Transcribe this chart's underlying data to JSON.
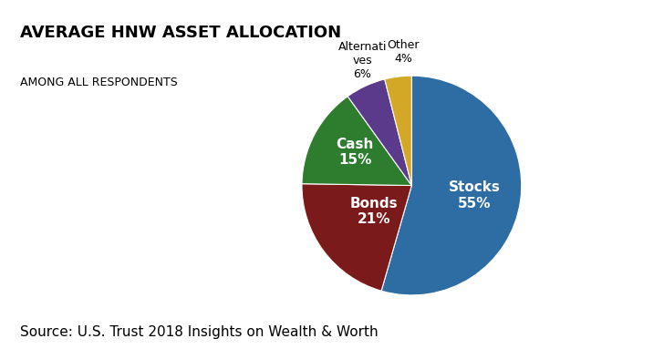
{
  "title": "AVERAGE HNW ASSET ALLOCATION",
  "subtitle": "AMONG ALL RESPONDENTS",
  "source": "Source: U.S. Trust 2018 Insights on Wealth & Worth",
  "slices": [
    55,
    21,
    15,
    6,
    4
  ],
  "inner_labels": [
    "Stocks\n55%",
    "Bonds\n21%",
    "Cash\n15%"
  ],
  "outer_labels": [
    "Alternati\nves\n6%",
    "Other\n4%"
  ],
  "inner_label_colors": [
    "white",
    "white",
    "white"
  ],
  "colors": [
    "#2E6DA4",
    "#7B1A1A",
    "#2E7D2E",
    "#5B3A8C",
    "#D4A827"
  ],
  "startangle": 90,
  "background_color": "#ffffff",
  "title_fontsize": 13,
  "subtitle_fontsize": 9,
  "source_fontsize": 11,
  "inner_radii": [
    0.58,
    0.42,
    0.6
  ],
  "outer_radii": [
    1.28,
    1.28
  ]
}
